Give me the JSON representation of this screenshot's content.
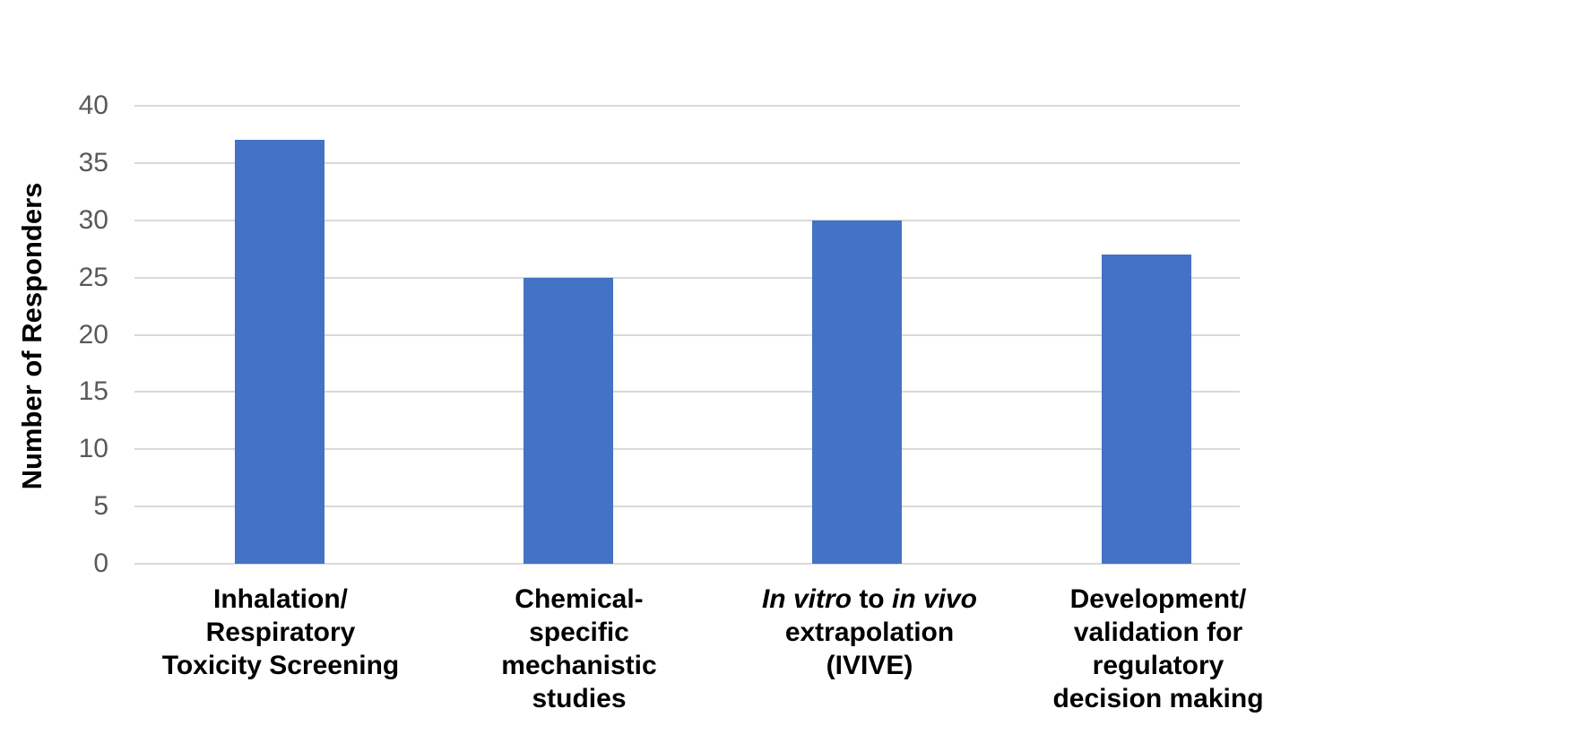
{
  "chart_data": {
    "type": "bar",
    "title": "",
    "xlabel": "",
    "ylabel": "Number of Responders",
    "ylim": [
      0,
      40
    ],
    "yticks": [
      0,
      5,
      10,
      15,
      20,
      25,
      30,
      35,
      40
    ],
    "grid": "horizontal",
    "legend_position": "none",
    "categories": [
      "Inhalation/ Respiratory Toxicity Screening",
      "Chemical-specific mechanistic studies",
      "In vitro to in vivo extrapolation (IVIVE)",
      "Development/ validation for regulatory decision making"
    ],
    "values": [
      37,
      25,
      30,
      27
    ],
    "bar_color": "#4472C4",
    "gridline_color": "#D9D9D9",
    "tick_label_color": "#595959",
    "category_label_color": "#000000",
    "category_label_lines": [
      [
        [
          {
            "text": "Inhalation/",
            "italic": false
          }
        ],
        [
          {
            "text": "Respiratory",
            "italic": false
          }
        ],
        [
          {
            "text": "Toxicity Screening",
            "italic": false
          }
        ]
      ],
      [
        [
          {
            "text": "Chemical-",
            "italic": false
          }
        ],
        [
          {
            "text": "specific",
            "italic": false
          }
        ],
        [
          {
            "text": "mechanistic",
            "italic": false
          }
        ],
        [
          {
            "text": "studies",
            "italic": false
          }
        ]
      ],
      [
        [
          {
            "text": "In vitro",
            "italic": true
          },
          {
            "text": " to ",
            "italic": false
          },
          {
            "text": "in vivo",
            "italic": true
          }
        ],
        [
          {
            "text": "extrapolation",
            "italic": false
          }
        ],
        [
          {
            "text": "(IVIVE)",
            "italic": false
          }
        ]
      ],
      [
        [
          {
            "text": "Development/",
            "italic": false
          }
        ],
        [
          {
            "text": "validation for",
            "italic": false
          }
        ],
        [
          {
            "text": "regulatory",
            "italic": false
          }
        ],
        [
          {
            "text": "decision making",
            "italic": false
          }
        ]
      ]
    ]
  }
}
